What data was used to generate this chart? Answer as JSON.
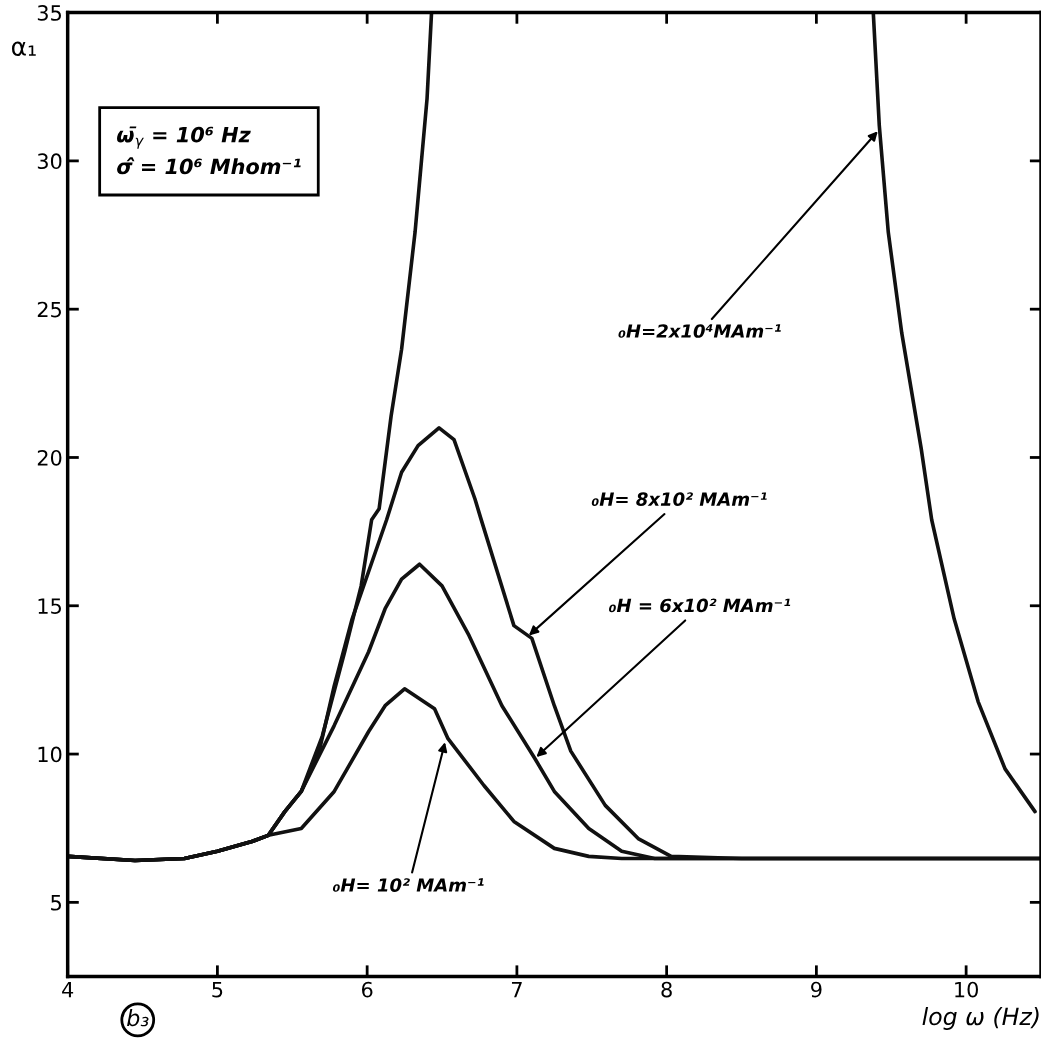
{
  "chart_data": {
    "type": "line",
    "xlabel": "log ω (Hz)",
    "ylabel": "α₁",
    "xlim": [
      4,
      10.5
    ],
    "xticks": [
      4,
      5,
      6,
      7,
      8,
      9,
      10
    ],
    "ylim": [
      2.5,
      35
    ],
    "yticks": [
      5,
      10,
      15,
      20,
      25,
      30,
      35
    ],
    "grid": false,
    "line_style": "solid",
    "marker": "none",
    "series": [
      {
        "color": "#111111",
        "x": [
          4.0,
          4.45,
          4.78,
          5.0,
          5.23,
          5.34,
          5.56,
          5.78,
          6.01,
          6.12,
          6.25,
          6.45,
          6.54,
          6.78,
          6.98,
          7.25,
          7.48,
          7.7,
          8.5,
          10.5
        ],
        "values": [
          6.55,
          6.41,
          6.48,
          6.72,
          7.05,
          7.26,
          7.49,
          8.74,
          10.76,
          11.63,
          12.2,
          11.53,
          10.52,
          8.94,
          7.73,
          6.82,
          6.55,
          6.48,
          6.48,
          6.48
        ]
      },
      {
        "color": "#111111",
        "x": [
          4.0,
          4.45,
          4.78,
          5.0,
          5.23,
          5.34,
          5.45,
          5.56,
          5.78,
          6.01,
          6.12,
          6.23,
          6.35,
          6.5,
          6.68,
          6.9,
          7.12,
          7.25,
          7.48,
          7.7,
          7.92,
          8.5,
          10.5
        ],
        "values": [
          6.55,
          6.41,
          6.48,
          6.72,
          7.05,
          7.26,
          8.06,
          8.74,
          10.96,
          13.45,
          14.9,
          15.9,
          16.4,
          15.67,
          14.0,
          11.63,
          9.85,
          8.74,
          7.49,
          6.72,
          6.48,
          6.48,
          6.48
        ]
      },
      {
        "color": "#111111",
        "x": [
          4.0,
          4.45,
          4.78,
          5.0,
          5.23,
          5.34,
          5.45,
          5.56,
          5.68,
          5.78,
          5.9,
          6.13,
          6.23,
          6.34,
          6.48,
          6.58,
          6.72,
          6.76,
          6.98,
          7.1,
          7.25,
          7.36,
          7.59,
          7.81,
          8.03,
          8.5,
          10.5
        ],
        "values": [
          6.55,
          6.41,
          6.48,
          6.72,
          7.05,
          7.26,
          8.06,
          8.74,
          10.1,
          12.3,
          14.56,
          17.9,
          19.5,
          20.4,
          21.0,
          20.6,
          18.6,
          17.93,
          14.33,
          13.9,
          11.63,
          10.1,
          8.27,
          7.15,
          6.55,
          6.48,
          6.48
        ]
      },
      {
        "color": "#111111",
        "x": [
          4.0,
          4.45,
          4.78,
          5.0,
          5.23,
          5.34,
          5.45,
          5.56,
          5.7,
          5.85,
          5.96,
          6.03,
          6.08,
          6.16,
          6.23,
          6.32,
          6.4,
          6.43,
          8.0,
          9.38,
          9.42,
          9.48,
          9.57,
          9.7,
          9.77,
          9.92,
          10.08,
          10.26,
          10.46
        ],
        "values": [
          6.55,
          6.41,
          6.48,
          6.72,
          7.05,
          7.26,
          8.06,
          8.74,
          10.6,
          13.45,
          15.67,
          17.9,
          18.27,
          21.4,
          23.65,
          27.6,
          32.1,
          35,
          null,
          35,
          31.2,
          27.6,
          24.2,
          20.3,
          17.9,
          14.56,
          11.77,
          9.5,
          8.06
        ]
      }
    ],
    "annotations": [
      "ω̄$_{γ}$ = 10⁶ Hz",
      "σ̂ = 10⁶ Mhom⁻¹",
      "b₃",
      {
        "text": "₀H=2x10⁴MAm⁻¹",
        "x": 9.41,
        "y": 31.0
      },
      {
        "text": "₀H= 8x10² MAm⁻¹",
        "x": 7.08,
        "y": 14.0
      },
      {
        "text": "₀H = 6x10² MAm⁻¹",
        "x": 7.13,
        "y": 9.9
      },
      {
        "text": "₀H= 10² MAm⁻¹",
        "x": 6.52,
        "y": 10.4
      }
    ]
  }
}
